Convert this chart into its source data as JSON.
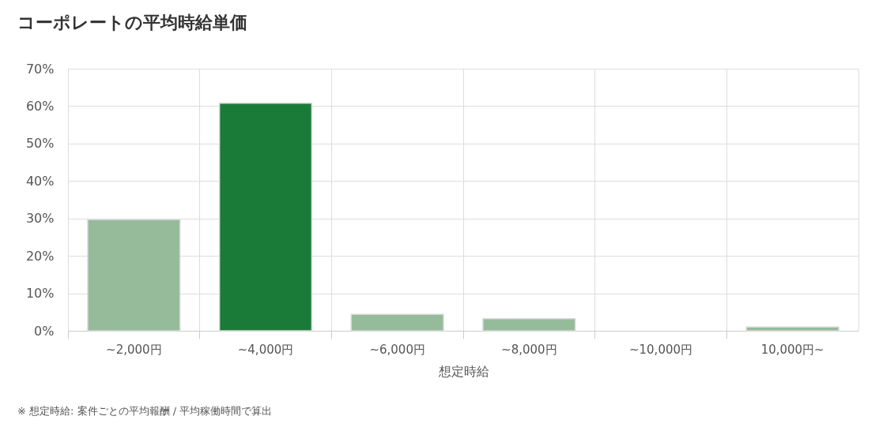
{
  "chart_data": {
    "type": "bar",
    "title": "コーポレートの平均時給単価",
    "xlabel": "想定時給",
    "categories": [
      "~2,000円",
      "~4,000円",
      "~6,000円",
      "~8,000円",
      "~10,000円",
      "10,000円~"
    ],
    "values": [
      29.7,
      60.8,
      4.4,
      3.2,
      0,
      1.0
    ],
    "colors": [
      "#95bb9b",
      "#1a7a38",
      "#95bb9b",
      "#95bb9b",
      null,
      "#95bb9b"
    ],
    "ylim": [
      0,
      70
    ],
    "yticks": [
      {
        "value": 0,
        "label": "0%"
      },
      {
        "value": 10,
        "label": "10%"
      },
      {
        "value": 20,
        "label": "20%"
      },
      {
        "value": 30,
        "label": "30%"
      },
      {
        "value": 40,
        "label": "40%"
      },
      {
        "value": 50,
        "label": "50%"
      },
      {
        "value": 60,
        "label": "60%"
      },
      {
        "value": 70,
        "label": "70%"
      }
    ],
    "grid": true,
    "annotations": [
      "※ 想定時給: 案件ごとの平均報酬 / 平均稼働時間で算出"
    ]
  }
}
